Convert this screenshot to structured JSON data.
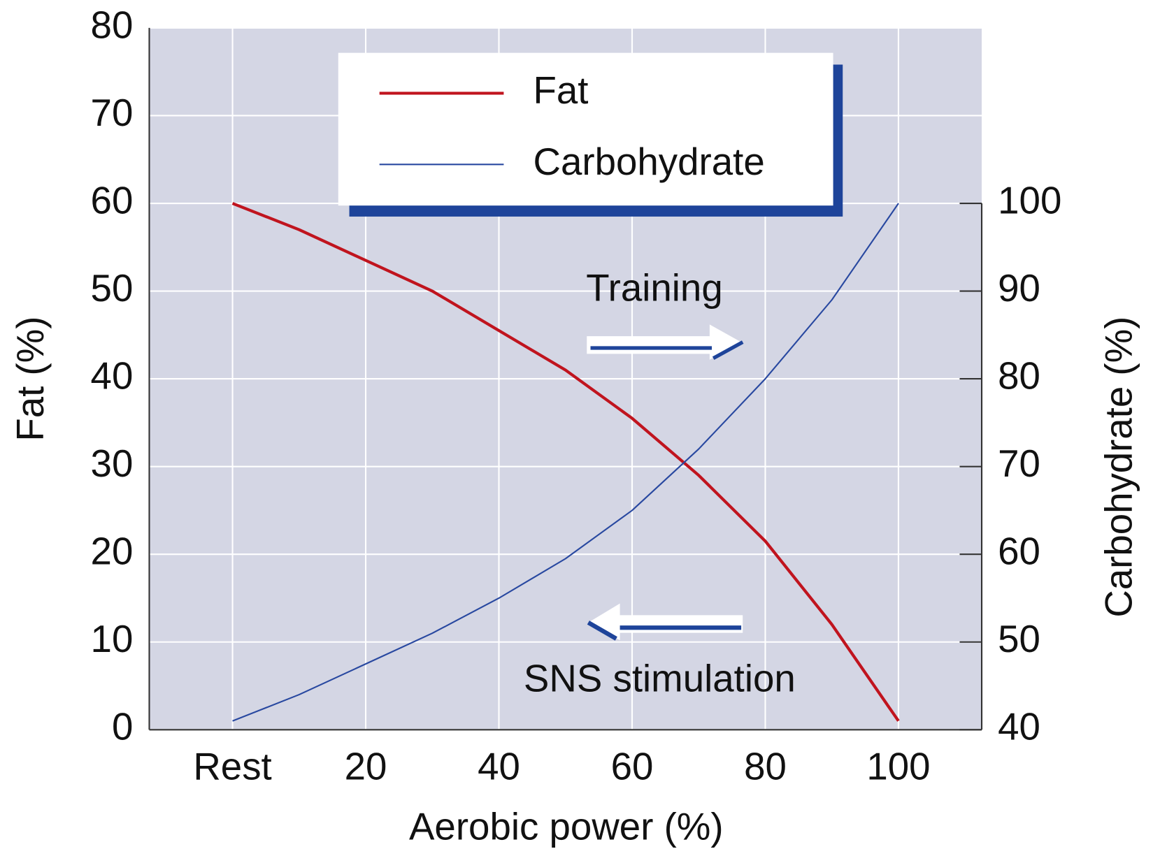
{
  "chart_data": {
    "type": "line",
    "x_label": "Aerobic power (%)",
    "y_label": "Fat (%)",
    "y2_label": "Carbohydrate (%)",
    "x": [
      0,
      10,
      20,
      30,
      40,
      50,
      60,
      70,
      80,
      90,
      100
    ],
    "series": [
      {
        "name": "Fat",
        "color": "#c0141e",
        "values": [
          60,
          57,
          53.5,
          50,
          45.5,
          41,
          35.5,
          29,
          21.5,
          12,
          1
        ]
      },
      {
        "name": "Carbohydrate",
        "color": "#2848a0",
        "axis": "y2",
        "values": [
          41,
          44,
          47.5,
          51,
          55,
          59.5,
          65,
          72,
          80,
          89,
          100
        ]
      }
    ],
    "xlim": [
      -12.5,
      112.5
    ],
    "xticks": [
      {
        "value": 0,
        "label": "Rest"
      },
      20,
      40,
      60,
      80,
      100
    ],
    "ylim": [
      0,
      80
    ],
    "yticks": [
      0,
      10,
      20,
      30,
      40,
      50,
      60,
      70,
      80
    ],
    "y2lim": [
      40,
      120
    ],
    "y2ticks": [
      40,
      50,
      60,
      70,
      80,
      90,
      100
    ],
    "grid": true,
    "legend": "top",
    "annotations": [
      "Training",
      "SNS stimulation"
    ]
  }
}
